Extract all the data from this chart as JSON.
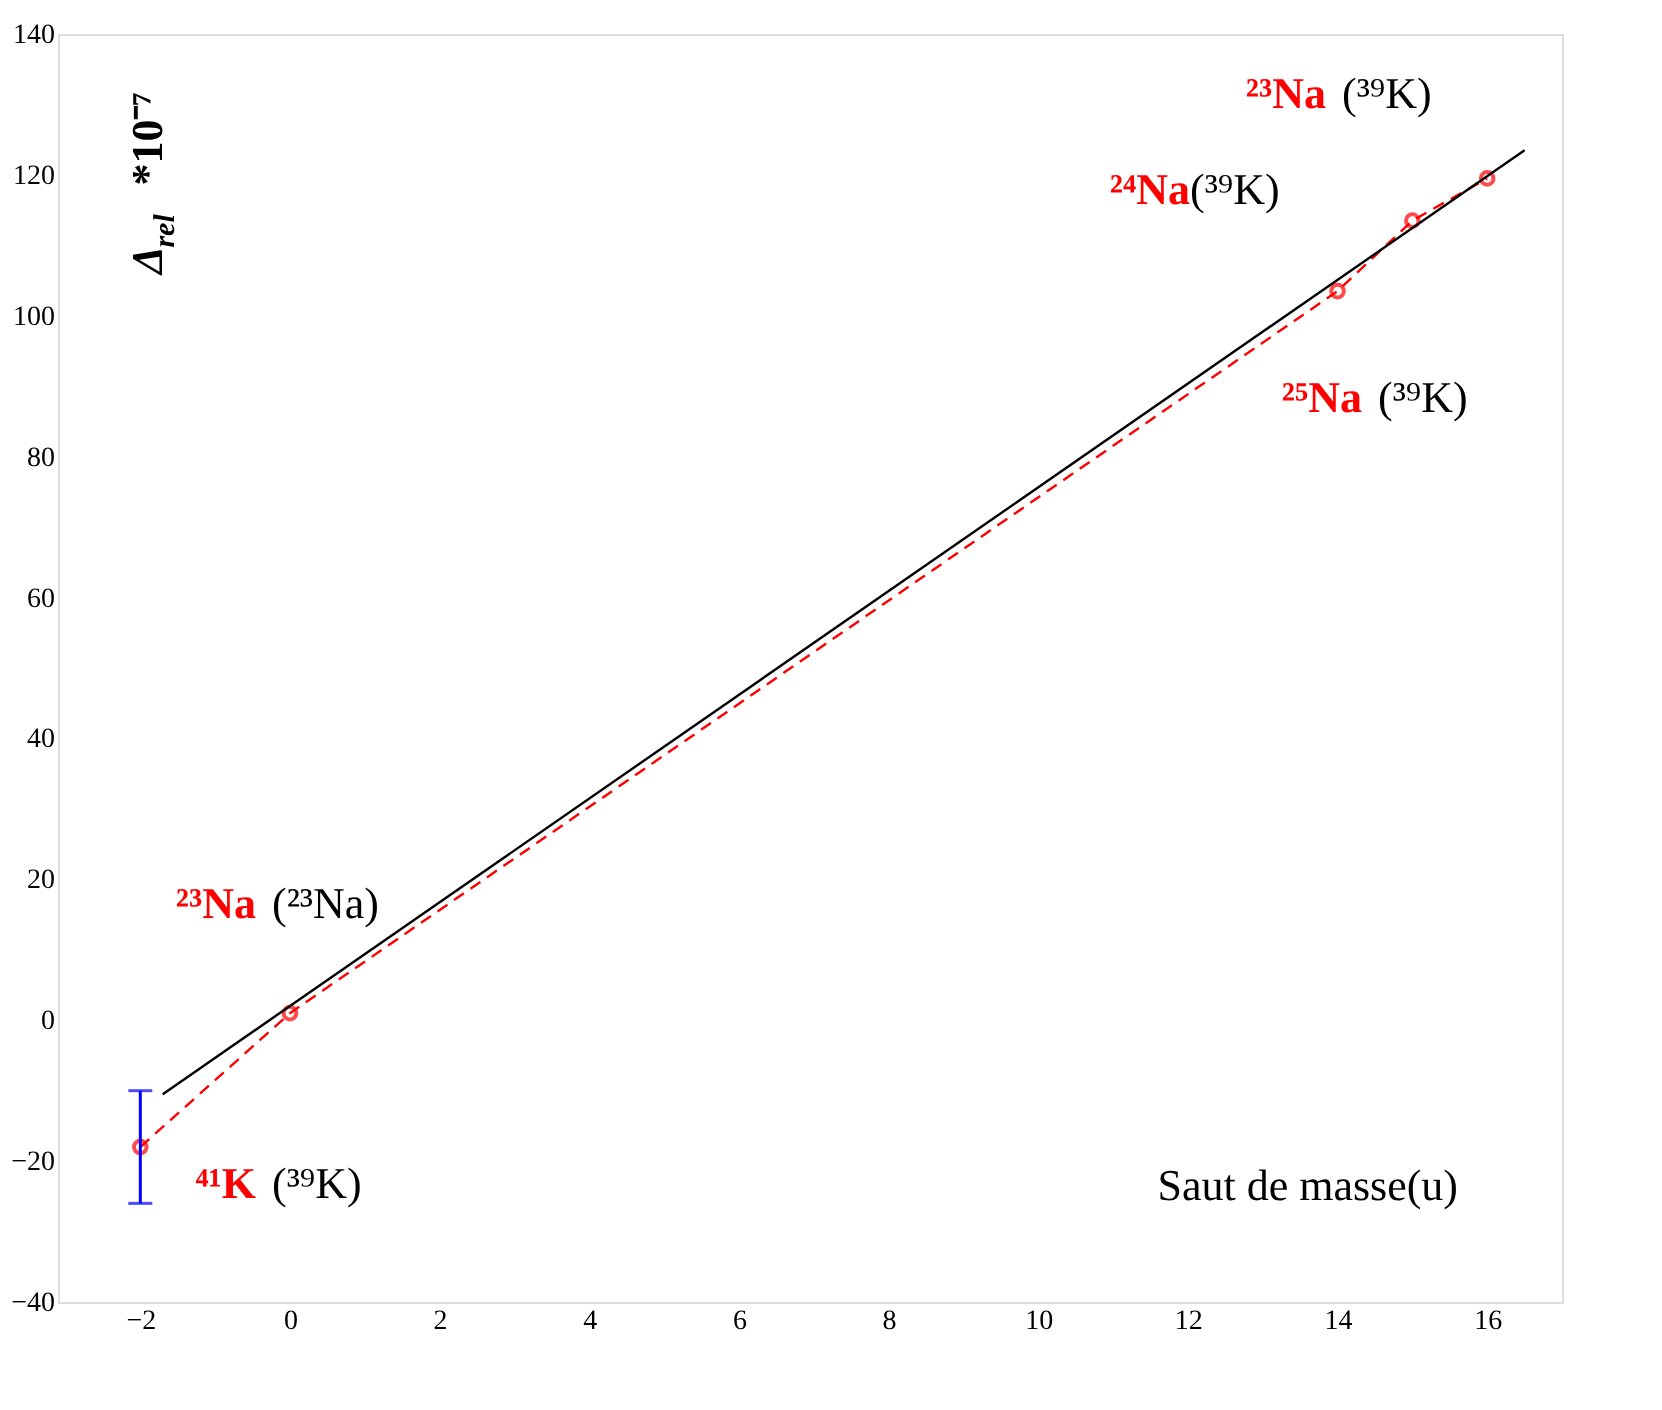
{
  "chart_data": {
    "type": "line",
    "xlabel": "Saut de masse(u)",
    "ylabel": "Δ$_{rel}$ *10⁻⁷",
    "series": [
      {
        "color": "#ff0000",
        "x": [
          -2,
          0,
          14,
          15,
          16
        ],
        "values": [
          -18,
          1,
          103.5,
          113.5,
          119.5
        ],
        "errors": [
          [
            -26,
            -10
          ],
          null,
          null,
          null,
          null
        ],
        "marker": "circle",
        "line_style": "dashed"
      },
      {
        "color": "#000000",
        "x": [
          -1.7,
          16.5
        ],
        "values": [
          -10.5,
          123.5
        ],
        "marker": "none",
        "line_style": "solid"
      }
    ],
    "xlim": [
      -3.1,
      17
    ],
    "ylim": [
      -40,
      140
    ],
    "xticks": [
      -2,
      0,
      2,
      4,
      6,
      8,
      10,
      12,
      14,
      16
    ],
    "yticks": [
      -40,
      -20,
      0,
      20,
      40,
      60,
      80,
      100,
      120,
      140
    ],
    "grid": false,
    "legend": false,
    "annotations": [
      "²³Na (³⁹K)",
      "²⁴Na(³⁹K)",
      "²⁵Na (³⁹K)",
      "²³Na (²³Na)",
      "⁴¹K (³⁹K)"
    ]
  }
}
